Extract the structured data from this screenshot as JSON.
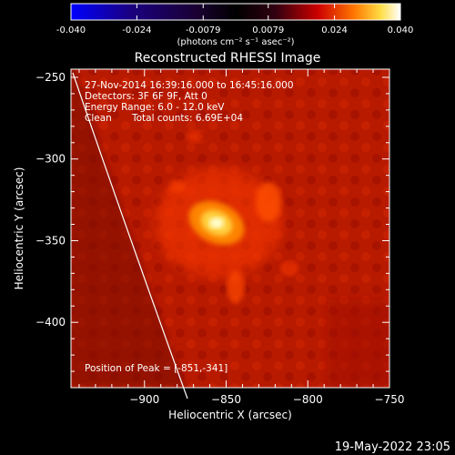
{
  "colorbar": {
    "tick_labels": [
      "-0.040",
      "-0.024",
      "-0.0079",
      "0.0079",
      "0.024",
      "0.040"
    ],
    "tick_values": [
      -0.04,
      -0.024,
      -0.0079,
      0.0079,
      0.024,
      0.04
    ],
    "range": [
      -0.04,
      0.04
    ],
    "unit_label": "(photons cm⁻² s⁻¹ asec⁻²)",
    "colors": [
      "#0000ff",
      "#220066",
      "#000000",
      "#200010",
      "#cc0000",
      "#ff7700",
      "#ffee66",
      "#ffffff"
    ]
  },
  "chart_data": {
    "type": "heatmap",
    "title": "Reconstructed RHESSI Image",
    "xlabel": "Heliocentric X (arcsec)",
    "ylabel": "Heliocentric Y (arcsec)",
    "xlim": [
      -945,
      -750
    ],
    "ylim": [
      -440,
      -245
    ],
    "x_ticks": [
      -900,
      -850,
      -800,
      -750
    ],
    "x_tick_labels": [
      "−900",
      "−850",
      "−800",
      "−750"
    ],
    "y_ticks": [
      -250,
      -300,
      -350,
      -400
    ],
    "y_tick_labels": [
      "−250",
      "−300",
      "−350",
      "−400"
    ],
    "peak": [
      -851,
      -341
    ],
    "annotations": {
      "time_range": "27-Nov-2014 16:39:16.000 to 16:45:16.000",
      "detectors": "Detectors: 3F 6F 9F, Att 0",
      "energy": "Energy Range: 6.0 - 12.0 keV",
      "method": "Clean",
      "counts": "Total counts: 6.69E+04",
      "peak_label": "Position of Peak = [-851,-341]"
    }
  },
  "footer": {
    "timestamp": "19-May-2022 23:05"
  }
}
